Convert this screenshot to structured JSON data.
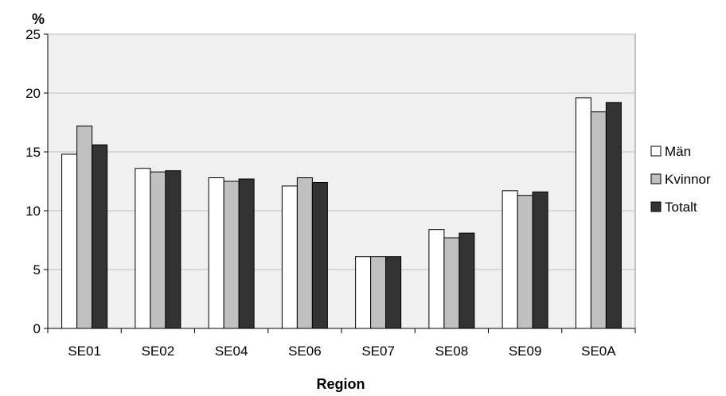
{
  "chart_data": {
    "type": "bar",
    "title": "",
    "xlabel": "Region",
    "ylabel": "%",
    "ylim": [
      0,
      25
    ],
    "yticks": [
      0,
      5,
      10,
      15,
      20,
      25
    ],
    "grid": true,
    "legend_position": "right",
    "categories": [
      "SE01",
      "SE02",
      "SE04",
      "SE06",
      "SE07",
      "SE08",
      "SE09",
      "SE0A"
    ],
    "series": [
      {
        "name": "Män",
        "color": "#ffffff",
        "values": [
          14.8,
          13.6,
          12.8,
          12.1,
          6.1,
          8.4,
          11.7,
          19.6
        ]
      },
      {
        "name": "Kvinnor",
        "color": "#c0c0c0",
        "values": [
          17.2,
          13.3,
          12.5,
          12.8,
          6.1,
          7.7,
          11.3,
          18.4
        ]
      },
      {
        "name": "Totalt",
        "color": "#333333",
        "values": [
          15.6,
          13.4,
          12.7,
          12.4,
          6.1,
          8.1,
          11.6,
          19.2
        ]
      }
    ],
    "colors": {
      "plot_background": "#f0f0f0",
      "gridline": "#c0c0c0",
      "axis": "#000000",
      "bar_outline": "#000000"
    }
  }
}
